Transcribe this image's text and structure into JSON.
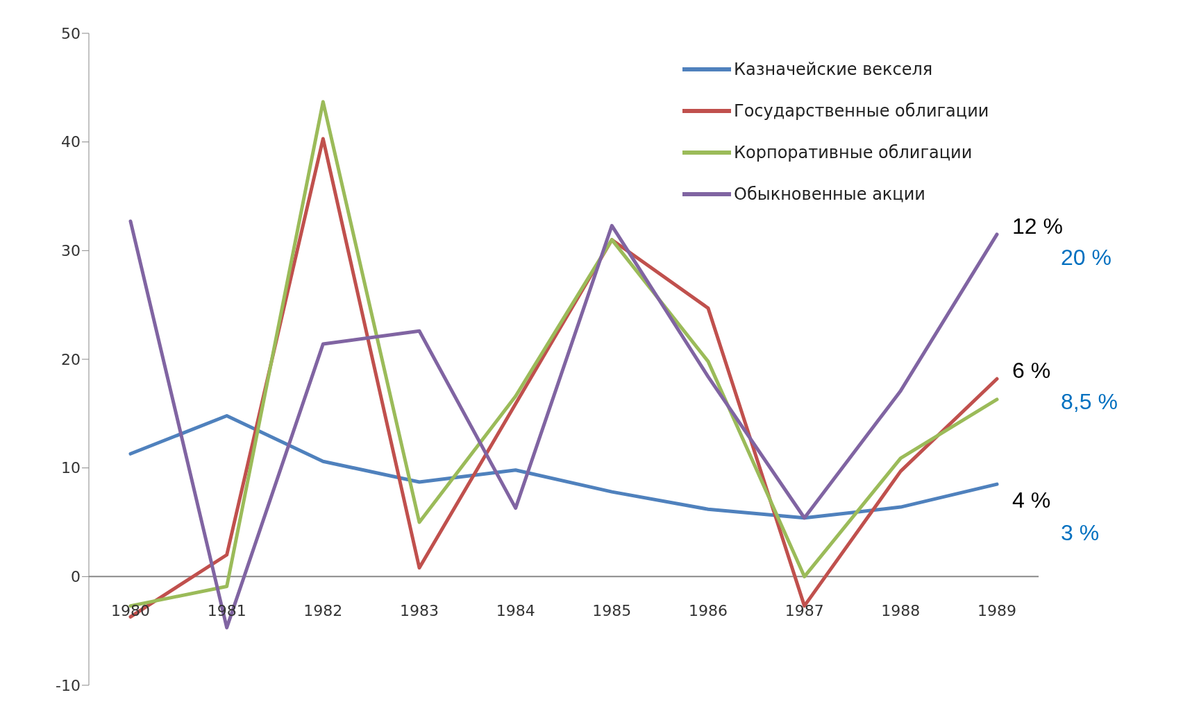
{
  "chart_data": {
    "type": "line",
    "categories": [
      "1980",
      "1981",
      "1982",
      "1983",
      "1984",
      "1985",
      "1986",
      "1987",
      "1988",
      "1989"
    ],
    "series": [
      {
        "name": "Казначейские векселя",
        "color": "#4f81bd",
        "values": [
          11.3,
          14.8,
          10.6,
          8.7,
          9.8,
          7.8,
          6.2,
          5.4,
          6.4,
          8.5
        ]
      },
      {
        "name": "Государственные облигации",
        "color": "#c0504d",
        "values": [
          -3.7,
          2,
          40.3,
          0.8,
          15.9,
          31,
          24.7,
          -2.7,
          9.7,
          18.2
        ]
      },
      {
        "name": "Корпоративные облигации",
        "color": "#9bbb59",
        "values": [
          -2.7,
          -0.9,
          43.7,
          5,
          16.6,
          31,
          19.8,
          0,
          10.9,
          16.3
        ]
      },
      {
        "name": "Обыкновенные акции",
        "color": "#8064a2",
        "values": [
          32.7,
          -4.7,
          21.4,
          22.6,
          6.3,
          32.3,
          18.4,
          5.4,
          17.1,
          31.5
        ]
      }
    ],
    "ylim": [
      -10,
      50
    ],
    "yticks": [
      -10,
      0,
      10,
      20,
      30,
      40,
      50
    ],
    "legend": "top right",
    "marker": "none",
    "line_style": "solid",
    "annotations": [
      "12 %",
      "20 %",
      "6 %",
      "8,5 %",
      "4 %",
      "3 %"
    ]
  }
}
